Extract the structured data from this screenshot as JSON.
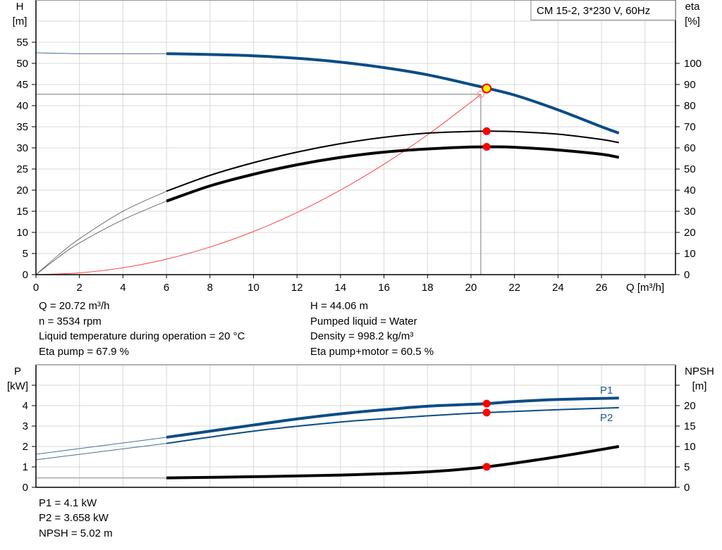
{
  "colors": {
    "head": "#0b4c86",
    "power": "#0b4c86",
    "eta": "#000000",
    "system": "#ff4040",
    "npsh": "#000000",
    "duty_point": "#ff0000",
    "operating_point": "#ffee00"
  },
  "chart_data": [
    {
      "type": "line",
      "title": "CM 15-2, 3*230 V, 60Hz",
      "xlabel": "Q [m³/h]",
      "ylabel": "H",
      "ylabel_unit": "[m]",
      "y2label": "eta",
      "y2label_unit": "[%]",
      "xlim": [
        0,
        29.4
      ],
      "ylim": [
        0,
        65
      ],
      "y2lim": [
        0,
        130
      ],
      "x_ticks": [
        "0",
        "2",
        "4",
        "6",
        "8",
        "10",
        "12",
        "14",
        "16",
        "18",
        "20",
        "22",
        "24",
        "26"
      ],
      "y_ticks": [
        "0",
        "5",
        "10",
        "15",
        "20",
        "25",
        "30",
        "35",
        "40",
        "45",
        "50",
        "55"
      ],
      "y2_ticks": [
        "0",
        "10",
        "20",
        "30",
        "40",
        "50",
        "60",
        "70",
        "80",
        "90",
        "100"
      ],
      "grid": true,
      "series": [
        {
          "key": "head",
          "axis": "H",
          "thin_until": 6,
          "points": [
            [
              0,
              52.5
            ],
            [
              2,
              52.3
            ],
            [
              4,
              52.3
            ],
            [
              6,
              52.3
            ],
            [
              8,
              52.1
            ],
            [
              10,
              51.8
            ],
            [
              12,
              51.2
            ],
            [
              14,
              50.3
            ],
            [
              16,
              49
            ],
            [
              18,
              47.3
            ],
            [
              20,
              45
            ],
            [
              22,
              42.5
            ],
            [
              24,
              39
            ],
            [
              26,
              35
            ],
            [
              26.8,
              33.5
            ]
          ]
        },
        {
          "key": "eta_pump",
          "axis": "eta",
          "thin_until": 6,
          "points": [
            [
              0,
              0
            ],
            [
              1,
              9
            ],
            [
              2,
              17
            ],
            [
              4,
              30
            ],
            [
              6,
              39.5
            ],
            [
              8,
              47
            ],
            [
              10,
              53
            ],
            [
              12,
              58
            ],
            [
              14,
              62
            ],
            [
              16,
              65
            ],
            [
              18,
              67
            ],
            [
              20,
              67.8
            ],
            [
              21,
              67.9
            ],
            [
              22,
              67.7
            ],
            [
              24,
              66.5
            ],
            [
              26,
              64
            ],
            [
              26.8,
              62.5
            ]
          ]
        },
        {
          "key": "eta_total",
          "axis": "eta",
          "thin_until": 6,
          "points": [
            [
              0,
              0
            ],
            [
              1,
              8
            ],
            [
              2,
              15
            ],
            [
              4,
              26
            ],
            [
              6,
              34.8
            ],
            [
              8,
              42
            ],
            [
              10,
              47.5
            ],
            [
              12,
              52
            ],
            [
              14,
              55.5
            ],
            [
              16,
              58
            ],
            [
              18,
              59.5
            ],
            [
              20,
              60.4
            ],
            [
              21,
              60.5
            ],
            [
              22,
              60.3
            ],
            [
              24,
              59
            ],
            [
              26,
              57
            ],
            [
              26.8,
              55.5
            ]
          ]
        },
        {
          "key": "system",
          "axis": "H",
          "points": [
            [
              0,
              0
            ],
            [
              2,
              0.41
            ],
            [
              4,
              1.63
            ],
            [
              6,
              3.67
            ],
            [
              8,
              6.53
            ],
            [
              10,
              10.21
            ],
            [
              12,
              14.7
            ],
            [
              14,
              20.01
            ],
            [
              16,
              26.14
            ],
            [
              18,
              33.08
            ],
            [
              20,
              40.84
            ],
            [
              20.45,
              42.7
            ]
          ]
        }
      ],
      "crosshair": {
        "Q": 20.45,
        "H": 42.7
      },
      "operating_point": {
        "Q": 20.72,
        "H": 44.06
      },
      "duty_points": [
        {
          "Q": 20.72,
          "eta": 67.9
        },
        {
          "Q": 20.72,
          "eta": 60.5
        }
      ]
    },
    {
      "type": "line",
      "ylabel": "P",
      "ylabel_unit": "[kW]",
      "y2label": "NPSH",
      "y2label_unit": "[m]",
      "xlim": [
        0,
        29.4
      ],
      "ylim": [
        0,
        6
      ],
      "y2lim": [
        0,
        30
      ],
      "y_ticks": [
        "0",
        "1",
        "2",
        "3",
        "4"
      ],
      "y2_ticks": [
        "0",
        "5",
        "10",
        "15",
        "20"
      ],
      "grid": true,
      "series": [
        {
          "key": "P1",
          "name": "P1",
          "axis": "P",
          "thin_until": 6,
          "points": [
            [
              0,
              1.62
            ],
            [
              6,
              2.45
            ],
            [
              8,
              2.75
            ],
            [
              10,
              3.05
            ],
            [
              12,
              3.35
            ],
            [
              14,
              3.6
            ],
            [
              16,
              3.8
            ],
            [
              18,
              3.97
            ],
            [
              20.72,
              4.1
            ],
            [
              22,
              4.2
            ],
            [
              24,
              4.3
            ],
            [
              26.8,
              4.37
            ]
          ]
        },
        {
          "key": "P2",
          "name": "P2",
          "axis": "P",
          "thin_until": 6,
          "points": [
            [
              0,
              1.35
            ],
            [
              6,
              2.15
            ],
            [
              10,
              2.75
            ],
            [
              14,
              3.2
            ],
            [
              18,
              3.5
            ],
            [
              20.72,
              3.658
            ],
            [
              24,
              3.8
            ],
            [
              26.8,
              3.9
            ]
          ]
        },
        {
          "key": "NPSH",
          "axis": "NPSH",
          "thin_until": 6,
          "points": [
            [
              0,
              2.3
            ],
            [
              6,
              2.3
            ],
            [
              10,
              2.6
            ],
            [
              14,
              3.0
            ],
            [
              18,
              3.8
            ],
            [
              20.72,
              5.02
            ],
            [
              24,
              7.5
            ],
            [
              26.8,
              10
            ]
          ]
        }
      ],
      "duty_points": [
        {
          "Q": 20.72,
          "P": 4.1
        },
        {
          "Q": 20.72,
          "P": 3.658
        },
        {
          "Q": 20.72,
          "NPSH": 5.02
        }
      ]
    }
  ],
  "info_top": {
    "left": [
      "Q = 20.72 m³/h",
      "n = 3534 rpm",
      "Liquid temperature during operation = 20 °C",
      "Eta pump = 67.9 %"
    ],
    "right": [
      "H = 44.06 m",
      "Pumped liquid = Water",
      "Density = 998.2 kg/m³",
      "Eta pump+motor = 60.5 %"
    ]
  },
  "info_bottom": [
    "P1 = 4.1 kW",
    "P2 = 3.658 kW",
    "NPSH = 5.02 m"
  ]
}
